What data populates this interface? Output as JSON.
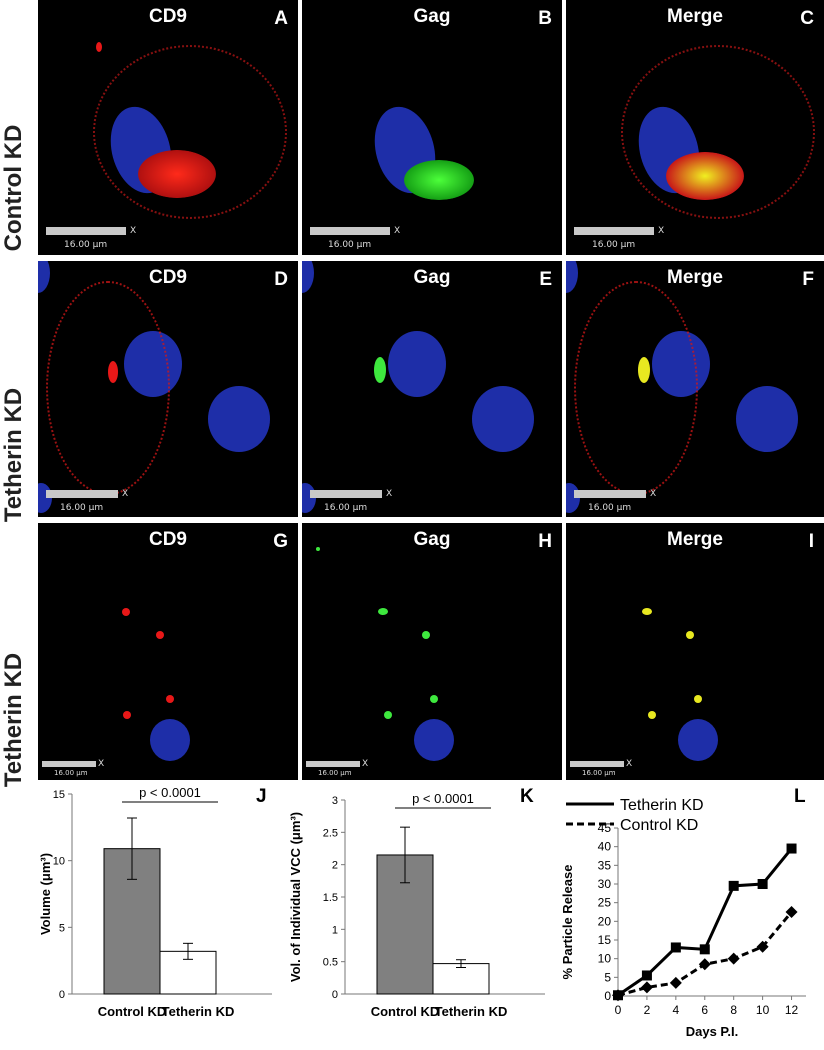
{
  "rows": [
    {
      "label": "Control KD"
    },
    {
      "label": "Tetherin KD"
    },
    {
      "label": "Tetherin KD"
    }
  ],
  "panels": [
    {
      "title": "CD9",
      "letter": "A",
      "scale": "16.00 μm",
      "x": "X"
    },
    {
      "title": "Gag",
      "letter": "B",
      "scale": "16.00 μm",
      "x": "X"
    },
    {
      "title": "Merge",
      "letter": "C",
      "scale": "16.00 μm",
      "x": "X"
    },
    {
      "title": "CD9",
      "letter": "D",
      "scale": "16.00 μm",
      "x": "X"
    },
    {
      "title": "Gag",
      "letter": "E",
      "scale": "16.00 μm",
      "x": "X"
    },
    {
      "title": "Merge",
      "letter": "F",
      "scale": "16.00 μm",
      "x": "X"
    },
    {
      "title": "CD9",
      "letter": "G",
      "scale": "16.00 μm",
      "x": "X"
    },
    {
      "title": "Gag",
      "letter": "H",
      "scale": "16.00 μm",
      "x": "X"
    },
    {
      "title": "Merge",
      "letter": "I",
      "scale": "16.00 μm",
      "x": "X"
    }
  ],
  "colors": {
    "cd9": "#e81818",
    "gag": "#22cc22",
    "nucleus": "#1e2ea8",
    "merge": "#d4d418",
    "bar_control": "#808080",
    "bar_tetherin": "#ffffff"
  },
  "chart_data": [
    {
      "type": "bar",
      "letter": "J",
      "categories": [
        "Control KD",
        "Tetherin KD"
      ],
      "values": [
        10.9,
        3.2
      ],
      "errors": [
        2.3,
        0.6
      ],
      "ylabel": "Volume  (μm³)",
      "ylim": [
        0,
        15
      ],
      "yticks": [
        "0",
        "5",
        "10",
        "15"
      ],
      "annotation": "p < 0.0001"
    },
    {
      "type": "bar",
      "letter": "K",
      "categories": [
        "Control KD",
        "Tetherin KD"
      ],
      "values": [
        2.15,
        0.47
      ],
      "errors": [
        0.43,
        0.06
      ],
      "ylabel": "Vol. of Individual VCC (μm³)",
      "ylim": [
        0,
        3
      ],
      "yticks": [
        "0",
        "0.5",
        "1",
        "1.5",
        "2",
        "2.5",
        "3"
      ],
      "annotation": "p < 0.0001"
    },
    {
      "type": "line",
      "letter": "L",
      "x": [
        0,
        2,
        4,
        6,
        8,
        10,
        12
      ],
      "series": [
        {
          "name": "Tetherin KD",
          "values": [
            0.2,
            5.5,
            13,
            12.5,
            29.5,
            30,
            39.5
          ],
          "style": "solid",
          "marker": "square"
        },
        {
          "name": "Control KD",
          "values": [
            0.2,
            2.3,
            3.5,
            8.5,
            10,
            13.2,
            22.5
          ],
          "style": "dashed",
          "marker": "diamond"
        }
      ],
      "xlabel": "Days P.I.",
      "ylabel": "% Particle Release",
      "ylim": [
        0,
        45
      ],
      "xticks": [
        "0",
        "2",
        "4",
        "6",
        "8",
        "10",
        "12"
      ],
      "yticks": [
        "0",
        "5",
        "10",
        "15",
        "20",
        "25",
        "30",
        "35",
        "40",
        "45"
      ],
      "legend": "top-left"
    }
  ]
}
